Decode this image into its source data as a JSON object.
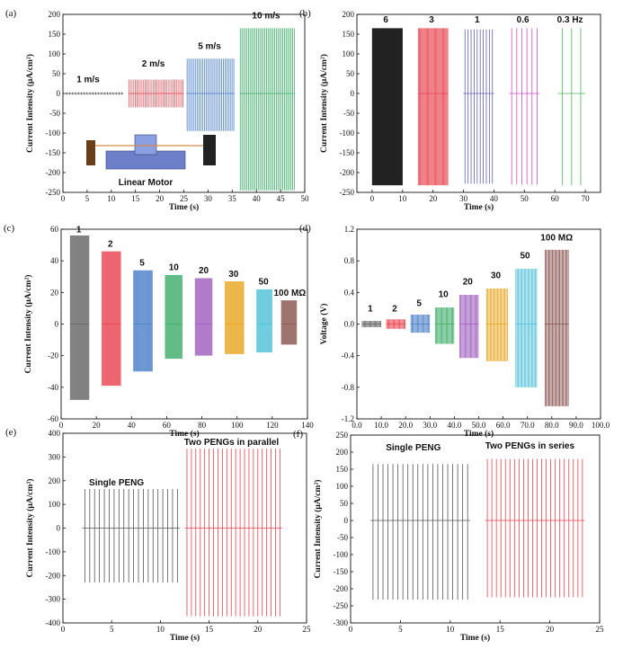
{
  "chart_data": [
    {
      "panel": "(a)",
      "type": "line",
      "xlabel": "Time (s)",
      "ylabel": "Current Intensity (μA/cm²)",
      "xlim": [
        0,
        50
      ],
      "ylim": [
        -250,
        200
      ],
      "xticks": [
        0,
        5,
        10,
        15,
        20,
        25,
        30,
        35,
        40,
        45,
        50
      ],
      "yticks": [
        -250,
        -200,
        -150,
        -100,
        -50,
        0,
        50,
        100,
        150,
        200
      ],
      "bursts": [
        {
          "label": "1 m/s",
          "color": "#555555",
          "x_range": [
            0.5,
            12.5
          ],
          "peak_pos": 3,
          "peak_neg": -3,
          "count": 20
        },
        {
          "label": "2 m/s",
          "color": "#e8434f",
          "x_range": [
            13.5,
            25
          ],
          "peak_pos": 35,
          "peak_neg": -35,
          "count": 28
        },
        {
          "label": "5 m/s",
          "color": "#4a7fc8",
          "x_range": [
            25.5,
            35.5
          ],
          "peak_pos": 88,
          "peak_neg": -95,
          "count": 28
        },
        {
          "label": "10 m/s",
          "color": "#3fae6a",
          "x_range": [
            36.5,
            48
          ],
          "peak_pos": 165,
          "peak_neg": -245,
          "count": 34
        }
      ],
      "inset_label": "Linear Motor"
    },
    {
      "panel": "(b)",
      "type": "line",
      "xlabel": "Time (s)",
      "ylabel": "Current Intensity (μA/cm²)",
      "xlim": [
        -5,
        75
      ],
      "ylim": [
        -250,
        200
      ],
      "xticks": [
        0,
        10,
        20,
        30,
        40,
        50,
        60,
        70
      ],
      "yticks": [
        -250,
        -200,
        -150,
        -100,
        -50,
        0,
        50,
        100,
        150,
        200
      ],
      "bursts": [
        {
          "label": "6",
          "color": "#222222",
          "x_range": [
            0,
            10
          ],
          "peak_pos": 165,
          "peak_neg": -232,
          "count": 60
        },
        {
          "label": "3",
          "color": "#e8434f",
          "x_range": [
            15,
            25
          ],
          "peak_pos": 165,
          "peak_neg": -232,
          "count": 30
        },
        {
          "label": "1",
          "color": "#6060b0",
          "x_range": [
            30,
            40
          ],
          "peak_pos": 162,
          "peak_neg": -228,
          "count": 10
        },
        {
          "label": "0.6",
          "color": "#c84fbf",
          "x_range": [
            45,
            55
          ],
          "peak_pos": 165,
          "peak_neg": -230,
          "count": 6
        },
        {
          "label": "0.3 Hz",
          "color": "#4fae57",
          "x_range": [
            61,
            70
          ],
          "peak_pos": 165,
          "peak_neg": -232,
          "count": 3
        }
      ]
    },
    {
      "panel": "(c)",
      "type": "line",
      "xlabel": "Time (s)",
      "ylabel": "Current Intensity (μA/cm²)",
      "xlim": [
        0,
        140
      ],
      "ylim": [
        -60,
        60
      ],
      "xticks": [
        0,
        20,
        40,
        60,
        80,
        100,
        120,
        140
      ],
      "yticks": [
        -60,
        -40,
        -20,
        0,
        20,
        40,
        60
      ],
      "bursts": [
        {
          "label": "1",
          "color": "#666666",
          "x_range": [
            5,
            16
          ],
          "peak_pos": 56,
          "peak_neg": -48,
          "count": 22
        },
        {
          "label": "2",
          "color": "#e8434f",
          "x_range": [
            23,
            34
          ],
          "peak_pos": 46,
          "peak_neg": -39,
          "count": 22
        },
        {
          "label": "5",
          "color": "#4a7fc8",
          "x_range": [
            41,
            52
          ],
          "peak_pos": 34,
          "peak_neg": -30,
          "count": 22
        },
        {
          "label": "10",
          "color": "#3fae6a",
          "x_range": [
            59,
            69
          ],
          "peak_pos": 31,
          "peak_neg": -22,
          "count": 20
        },
        {
          "label": "20",
          "color": "#a05fbf",
          "x_range": [
            76,
            86
          ],
          "peak_pos": 29,
          "peak_neg": -20,
          "count": 20
        },
        {
          "label": "30",
          "color": "#e8a51f",
          "x_range": [
            93,
            104
          ],
          "peak_pos": 27,
          "peak_neg": -19,
          "count": 22
        },
        {
          "label": "50",
          "color": "#4fc0d8",
          "x_range": [
            111,
            120
          ],
          "peak_pos": 22,
          "peak_neg": -18,
          "count": 18
        },
        {
          "label": "100 MΩ",
          "color": "#8a5550",
          "x_range": [
            125,
            134
          ],
          "peak_pos": 15,
          "peak_neg": -13,
          "count": 18
        }
      ]
    },
    {
      "panel": "(d)",
      "type": "line",
      "xlabel": "Time (s)",
      "ylabel": "Voltage (V)",
      "xlim": [
        0,
        100
      ],
      "ylim": [
        -1.2,
        1.2
      ],
      "xticks": [
        0,
        10,
        20,
        30,
        40,
        50,
        60,
        70,
        80,
        90,
        100
      ],
      "yticks": [
        -1.2,
        -0.8,
        -0.4,
        0.0,
        0.4,
        0.8,
        1.2
      ],
      "bursts": [
        {
          "label": "1",
          "color": "#666666",
          "x_range": [
            2,
            10
          ],
          "peak_pos": 0.04,
          "peak_neg": -0.04,
          "count": 18
        },
        {
          "label": "2",
          "color": "#e8434f",
          "x_range": [
            12,
            20
          ],
          "peak_pos": 0.06,
          "peak_neg": -0.06,
          "count": 18
        },
        {
          "label": "5",
          "color": "#4a7fc8",
          "x_range": [
            22,
            30
          ],
          "peak_pos": 0.12,
          "peak_neg": -0.11,
          "count": 18
        },
        {
          "label": "10",
          "color": "#3fae6a",
          "x_range": [
            32,
            40
          ],
          "peak_pos": 0.21,
          "peak_neg": -0.25,
          "count": 18
        },
        {
          "label": "20",
          "color": "#a05fbf",
          "x_range": [
            42,
            50
          ],
          "peak_pos": 0.37,
          "peak_neg": -0.43,
          "count": 18
        },
        {
          "label": "30",
          "color": "#e8a51f",
          "x_range": [
            53,
            62
          ],
          "peak_pos": 0.45,
          "peak_neg": -0.47,
          "count": 18
        },
        {
          "label": "50",
          "color": "#4fc0d8",
          "x_range": [
            65,
            74
          ],
          "peak_pos": 0.7,
          "peak_neg": -0.8,
          "count": 18
        },
        {
          "label": "100 MΩ",
          "color": "#8a5550",
          "x_range": [
            77,
            87
          ],
          "peak_pos": 0.94,
          "peak_neg": -1.04,
          "count": 20
        }
      ]
    },
    {
      "panel": "(e)",
      "type": "line",
      "xlabel": "Time (s)",
      "ylabel": "Current Intensity (μA/cm²)",
      "xlim": [
        0,
        25
      ],
      "ylim": [
        -400,
        400
      ],
      "xticks": [
        0,
        5,
        10,
        15,
        20,
        25
      ],
      "yticks": [
        -400,
        -300,
        -200,
        -100,
        0,
        100,
        200,
        300,
        400
      ],
      "bursts": [
        {
          "label": "Single PENG",
          "color": "#555555",
          "x_range": [
            2,
            12
          ],
          "peak_pos": 165,
          "peak_neg": -230,
          "count": 20
        },
        {
          "label": "Two PENGs in parallel",
          "color": "#e8434f",
          "x_range": [
            12.5,
            22.5
          ],
          "peak_pos": 335,
          "peak_neg": -372,
          "count": 22
        }
      ]
    },
    {
      "panel": "(f)",
      "type": "line",
      "xlabel": "Time (s)",
      "ylabel": "Current Intensity (μA/cm²)",
      "xlim": [
        0,
        25
      ],
      "ylim": [
        -300,
        250
      ],
      "xticks": [
        0,
        5,
        10,
        15,
        20,
        25
      ],
      "yticks": [
        -300,
        -250,
        -200,
        -150,
        -100,
        -50,
        0,
        50,
        100,
        150,
        200,
        250
      ],
      "bursts": [
        {
          "label": "Single PENG",
          "color": "#555555",
          "x_range": [
            2,
            12
          ],
          "peak_pos": 165,
          "peak_neg": -232,
          "count": 20
        },
        {
          "label": "Two PENGs in  series",
          "color": "#e8434f",
          "x_range": [
            13.5,
            23.5
          ],
          "peak_pos": 180,
          "peak_neg": -225,
          "count": 22
        }
      ]
    }
  ]
}
